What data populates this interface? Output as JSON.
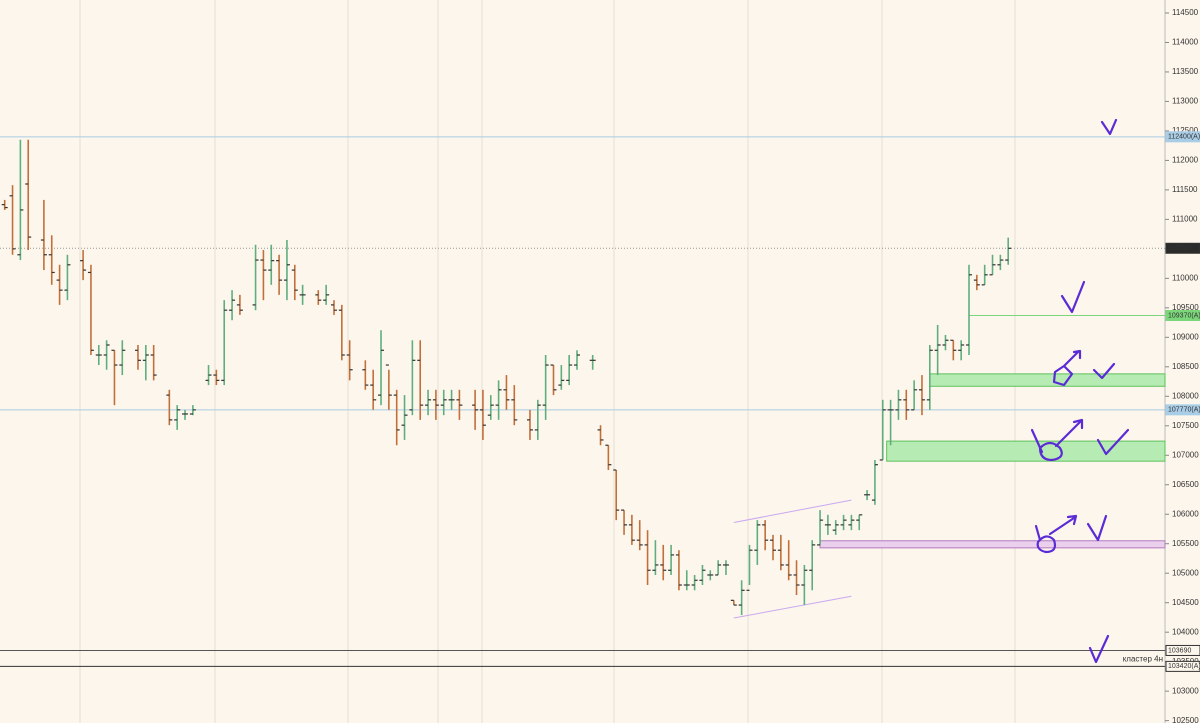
{
  "chart_data": {
    "type": "ohlc",
    "x": [
      1,
      2,
      3,
      4,
      6,
      7,
      8,
      9,
      11,
      12,
      13,
      14,
      15,
      16,
      18,
      19,
      20,
      22,
      23,
      24,
      25,
      27,
      28,
      29,
      30,
      31,
      33,
      34,
      35,
      36,
      37,
      38,
      39,
      41,
      42,
      43,
      44,
      45,
      47,
      48,
      49,
      50,
      51,
      52,
      53,
      54,
      55,
      56,
      57,
      58,
      59,
      61,
      62,
      63,
      64,
      65,
      66,
      68,
      69,
      70,
      71,
      72,
      73,
      74,
      76,
      77,
      78,
      79,
      80,
      81,
      82,
      83,
      84,
      85,
      86,
      87,
      88,
      89,
      90,
      91,
      92,
      93,
      94,
      95,
      96,
      97,
      98,
      99,
      100,
      101,
      102,
      103,
      104,
      105,
      106,
      107,
      108,
      109,
      110,
      111,
      112,
      113,
      114,
      115,
      116,
      117,
      118,
      119,
      120,
      121,
      122,
      123,
      124,
      125,
      126,
      127,
      128,
      129
    ],
    "open": [
      111250,
      111400,
      110400,
      111600,
      110650,
      110400,
      109970,
      109800,
      110300,
      110100,
      108700,
      108700,
      108780,
      108530,
      108780,
      108610,
      108700,
      108020,
      107600,
      107700,
      107700,
      108270,
      108360,
      108270,
      109460,
      109550,
      109550,
      110310,
      110140,
      110300,
      109970,
      110140,
      109720,
      109720,
      109630,
      109550,
      109460,
      108700,
      108450,
      108190,
      108020,
      108530,
      108020,
      107510,
      107770,
      108610,
      107850,
      107940,
      107850,
      107940,
      107940,
      107850,
      107770,
      107680,
      107850,
      108110,
      107940,
      107600,
      107430,
      107850,
      108530,
      108190,
      108270,
      108530,
      108610,
      107430,
      107170,
      106750,
      106070,
      105820,
      105560,
      105480,
      105050,
      105140,
      105050,
      105310,
      104800,
      104800,
      104880,
      104970,
      104970,
      105140,
      104540,
      104460,
      104710,
      105390,
      105820,
      105560,
      105390,
      105140,
      104970,
      104800,
      105050,
      105480,
      105820,
      105730,
      105820,
      105820,
      105900,
      106330,
      106240,
      106920,
      107770,
      107770,
      107940,
      107770,
      108110,
      107940,
      108780,
      108870,
      108950,
      108780,
      108870,
      109970,
      109890,
      110060,
      110230,
      110310
    ],
    "high": [
      111330,
      111580,
      112350,
      112350,
      111330,
      110730,
      110230,
      110400,
      110480,
      110230,
      108870,
      108950,
      108780,
      108950,
      108870,
      108870,
      108870,
      108110,
      107850,
      107770,
      107850,
      108530,
      108450,
      109630,
      109800,
      109720,
      110570,
      110480,
      110570,
      110400,
      110650,
      110230,
      109890,
      109800,
      109890,
      109630,
      109550,
      108950,
      108610,
      108450,
      109120,
      108450,
      108110,
      108020,
      108950,
      108950,
      108110,
      108110,
      108110,
      108110,
      108110,
      108110,
      108110,
      108020,
      108270,
      108360,
      108190,
      107770,
      107940,
      108700,
      108530,
      108530,
      108700,
      108780,
      108700,
      107510,
      107170,
      106750,
      106070,
      105990,
      105900,
      105730,
      105560,
      105480,
      105480,
      105390,
      105050,
      104970,
      105140,
      105050,
      105220,
      105220,
      104540,
      104880,
      105480,
      105900,
      105900,
      105650,
      105650,
      105560,
      105220,
      105140,
      105560,
      106070,
      105990,
      105900,
      105990,
      105990,
      105990,
      106410,
      106920,
      107940,
      107940,
      108110,
      108110,
      108270,
      108360,
      108870,
      109210,
      109040,
      108950,
      108950,
      110230,
      110060,
      110230,
      110400,
      110400,
      110690
    ],
    "low": [
      111160,
      110400,
      110310,
      110480,
      110140,
      109890,
      109550,
      109630,
      109970,
      108700,
      108530,
      108450,
      107850,
      108360,
      108450,
      108270,
      108270,
      107510,
      107430,
      107600,
      107680,
      108190,
      108190,
      108190,
      109290,
      109380,
      109460,
      109630,
      109890,
      109720,
      109630,
      109630,
      109550,
      109550,
      109550,
      109380,
      108610,
      108270,
      108110,
      107770,
      107850,
      107770,
      107170,
      107260,
      107680,
      107600,
      107680,
      107600,
      107680,
      107770,
      107600,
      107430,
      107260,
      107600,
      107600,
      107770,
      107510,
      107260,
      107260,
      107600,
      108020,
      108110,
      108190,
      108450,
      108450,
      107170,
      106750,
      105900,
      105650,
      105480,
      105390,
      104800,
      104970,
      104880,
      104970,
      104710,
      104710,
      104710,
      104800,
      104880,
      104970,
      104970,
      104460,
      104290,
      104800,
      105140,
      105390,
      105220,
      105050,
      104880,
      104630,
      104460,
      104710,
      105480,
      105650,
      105650,
      105730,
      105730,
      105730,
      106240,
      106160,
      106920,
      107170,
      107600,
      107600,
      107770,
      107680,
      107770,
      108360,
      108780,
      108610,
      108610,
      108700,
      109800,
      109890,
      110060,
      110140,
      110230
    ],
    "close": [
      111200,
      110500,
      111160,
      110700,
      110400,
      110100,
      109800,
      110230,
      110140,
      108780,
      108700,
      108870,
      108530,
      108780,
      108610,
      108700,
      108360,
      107600,
      107770,
      107700,
      107770,
      108360,
      108270,
      109460,
      109630,
      109460,
      110310,
      110140,
      110300,
      109970,
      110230,
      109800,
      109720,
      109630,
      109720,
      109460,
      108700,
      108450,
      108190,
      107940,
      108780,
      108020,
      107430,
      107680,
      108610,
      107850,
      107940,
      107850,
      107940,
      107940,
      107850,
      107770,
      107510,
      107850,
      108110,
      107940,
      107600,
      107430,
      107850,
      108530,
      108110,
      108270,
      108530,
      108700,
      108610,
      107260,
      106840,
      106070,
      105820,
      105560,
      105480,
      105050,
      105140,
      105050,
      105310,
      104800,
      104800,
      104880,
      105050,
      104970,
      105140,
      105140,
      104460,
      104710,
      105390,
      105820,
      105560,
      105390,
      105140,
      104970,
      104800,
      105050,
      105480,
      105900,
      105820,
      105820,
      105900,
      105900,
      105990,
      106330,
      106840,
      107770,
      107770,
      107940,
      107770,
      108110,
      107940,
      108780,
      108870,
      108950,
      108780,
      108870,
      110060,
      109890,
      110060,
      110230,
      110310,
      110510
    ],
    "up_color": "#5fae7e",
    "down_color": "#c2703a",
    "xlim": [
      0.4,
      149
    ],
    "ylim": [
      102460,
      114720
    ],
    "yticks": [
      102500,
      103000,
      103500,
      104000,
      104500,
      105000,
      105500,
      106000,
      106500,
      107000,
      107500,
      108000,
      108500,
      109000,
      109500,
      110000,
      110500,
      111000,
      111500,
      112000,
      112500,
      113000,
      113500,
      114000,
      114500
    ],
    "levels": [
      {
        "value": 112400,
        "label": "112400(A)",
        "color": "#a9cde6"
      },
      {
        "value": 110510,
        "color": "#9a9a9a"
      },
      {
        "value": 109370,
        "label": "109370(A)",
        "color": "#7bd67a",
        "x_start": 124
      },
      {
        "value": 107770,
        "label": "107770(A)",
        "color": "#a9cde6"
      },
      {
        "value": 103690,
        "label": "103690",
        "color": "#555555"
      },
      {
        "value": 103420,
        "label": "103420(A)",
        "color": "#333333"
      }
    ],
    "zones": [
      {
        "top": 108380,
        "bottom": 108170,
        "x_start": 119,
        "color": "#b6ecb4",
        "border": "#5cc15a"
      },
      {
        "top": 107240,
        "bottom": 106900,
        "x_start": 113.5,
        "color": "#b6ecb4",
        "border": "#5cc15a"
      },
      {
        "top": 105550,
        "bottom": 105430,
        "x_start": 105,
        "color": "#ebd0ee",
        "border": "#b07ac0"
      }
    ],
    "channel": [
      {
        "x": [
          94,
          109
        ],
        "y": [
          105860,
          106240
        ]
      },
      {
        "x": [
          94,
          109
        ],
        "y": [
          104240,
          104610
        ]
      }
    ],
    "channel_color": "#c9a8f0",
    "annotations": [
      {
        "text": "кластер 4н",
        "value": 103540
      }
    ]
  }
}
